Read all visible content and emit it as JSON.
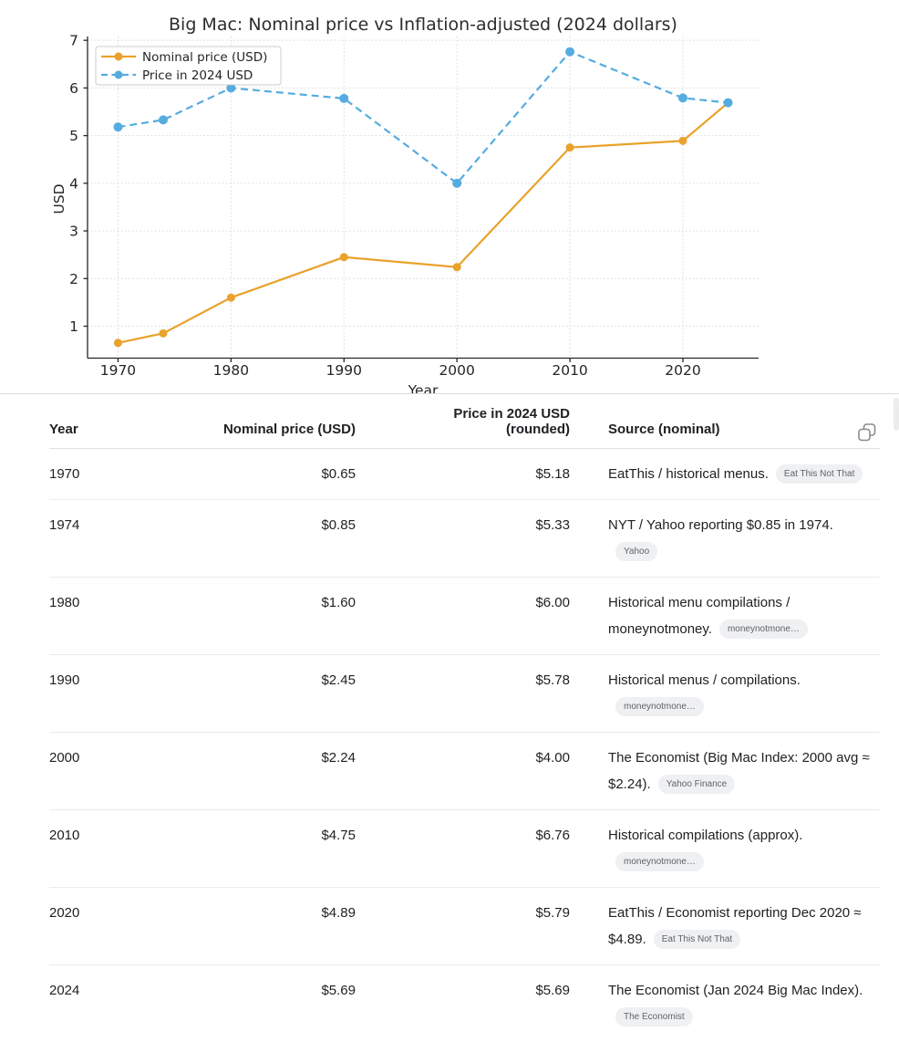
{
  "chart_data": {
    "type": "line",
    "title": "Big Mac: Nominal price vs Inflation-adjusted (2024 dollars)",
    "xlabel": "Year",
    "ylabel": "USD",
    "x": [
      1970,
      1974,
      1980,
      1990,
      2000,
      2010,
      2020,
      2024
    ],
    "series": [
      {
        "name": "Nominal price (USD)",
        "values": [
          0.65,
          0.85,
          1.6,
          2.45,
          2.24,
          4.75,
          4.89,
          5.69
        ],
        "color": "#E9A22B",
        "line_style": "solid"
      },
      {
        "name": "Price in 2024 USD",
        "values": [
          5.18,
          5.33,
          6.0,
          5.78,
          4.0,
          6.76,
          5.79,
          5.69
        ],
        "color": "#55ACE0",
        "line_style": "dashed"
      }
    ],
    "xticks": [
      1970,
      1980,
      1990,
      2000,
      2010,
      2020
    ],
    "yticks": [
      1,
      2,
      3,
      4,
      5,
      6,
      7
    ],
    "xlim": [
      1967.3,
      2026.7
    ],
    "ylim": [
      0.33,
      7.08
    ],
    "grid": true,
    "legend_position": "upper left"
  },
  "colors": {
    "nominal_line": "#E9A22B",
    "adjusted_line": "#55ACE0",
    "grid": "#d8d8d8",
    "axis": "#262626",
    "badge_bg": "#eff0f2",
    "badge_text": "#5f6368"
  },
  "icons": {
    "header_action": "copy-icon"
  },
  "table": {
    "columns": [
      {
        "label": "Year"
      },
      {
        "label": "Nominal price (USD)"
      },
      {
        "label_line1": "Price in 2024 USD",
        "label_line2": "(rounded)"
      },
      {
        "label": "Source (nominal)"
      }
    ],
    "rows": [
      {
        "year": "1970",
        "nominal": "$0.65",
        "adjusted": "$5.18",
        "source": "EatThis / historical menus.",
        "badge": "Eat This Not That"
      },
      {
        "year": "1974",
        "nominal": "$0.85",
        "adjusted": "$5.33",
        "source": "NYT / Yahoo reporting $0.85 in 1974.",
        "badge": "Yahoo"
      },
      {
        "year": "1980",
        "nominal": "$1.60",
        "adjusted": "$6.00",
        "source": "Historical menu compilations / moneynotmoney.",
        "badge": "moneynotmone…"
      },
      {
        "year": "1990",
        "nominal": "$2.45",
        "adjusted": "$5.78",
        "source": "Historical menus / compilations.",
        "badge": "moneynotmone…"
      },
      {
        "year": "2000",
        "nominal": "$2.24",
        "adjusted": "$4.00",
        "source": "The Economist (Big Mac Index: 2000 avg ≈ $2.24).",
        "badge": "Yahoo Finance"
      },
      {
        "year": "2010",
        "nominal": "$4.75",
        "adjusted": "$6.76",
        "source": "Historical compilations (approx).",
        "badge": "moneynotmone…"
      },
      {
        "year": "2020",
        "nominal": "$4.89",
        "adjusted": "$5.79",
        "source": "EatThis / Economist reporting Dec 2020 ≈ $4.89.",
        "badge": "Eat This Not That"
      },
      {
        "year": "2024",
        "nominal": "$5.69",
        "adjusted": "$5.69",
        "source": "The Economist (Jan 2024 Big Mac Index).",
        "badge": "The Economist"
      }
    ]
  }
}
